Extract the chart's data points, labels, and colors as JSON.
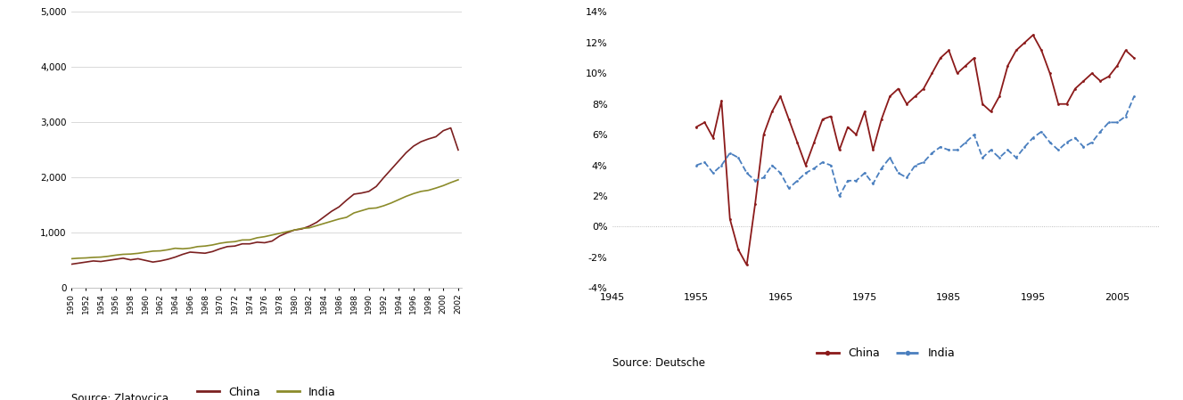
{
  "chart1": {
    "china_years": [
      1950,
      1951,
      1952,
      1953,
      1954,
      1955,
      1956,
      1957,
      1958,
      1959,
      1960,
      1961,
      1962,
      1963,
      1964,
      1965,
      1966,
      1967,
      1968,
      1969,
      1970,
      1971,
      1972,
      1973,
      1974,
      1975,
      1976,
      1977,
      1978,
      1979,
      1980,
      1981,
      1982,
      1983,
      1984,
      1985,
      1986,
      1987,
      1988,
      1989,
      1990,
      1991,
      1992,
      1993,
      1994,
      1995,
      1996,
      1997,
      1998,
      1999,
      2000,
      2001,
      2002
    ],
    "china_gdp": [
      430,
      450,
      470,
      490,
      480,
      500,
      520,
      540,
      510,
      530,
      500,
      470,
      490,
      520,
      560,
      610,
      650,
      640,
      630,
      660,
      710,
      750,
      760,
      800,
      800,
      830,
      820,
      850,
      940,
      1000,
      1050,
      1070,
      1120,
      1190,
      1290,
      1390,
      1470,
      1590,
      1700,
      1720,
      1750,
      1840,
      2000,
      2150,
      2300,
      2450,
      2570,
      2650,
      2700,
      2740,
      2850,
      2900,
      2500
    ],
    "india_years": [
      1950,
      1951,
      1952,
      1953,
      1954,
      1955,
      1956,
      1957,
      1958,
      1959,
      1960,
      1961,
      1962,
      1963,
      1964,
      1965,
      1966,
      1967,
      1968,
      1969,
      1970,
      1971,
      1972,
      1973,
      1974,
      1975,
      1976,
      1977,
      1978,
      1979,
      1980,
      1981,
      1982,
      1983,
      1984,
      1985,
      1986,
      1987,
      1988,
      1989,
      1990,
      1991,
      1992,
      1993,
      1994,
      1995,
      1996,
      1997,
      1998,
      1999,
      2000,
      2001,
      2002
    ],
    "india_gdp": [
      530,
      540,
      545,
      555,
      560,
      575,
      595,
      610,
      615,
      628,
      648,
      668,
      673,
      693,
      720,
      710,
      722,
      750,
      760,
      780,
      810,
      830,
      840,
      870,
      872,
      910,
      930,
      960,
      990,
      1020,
      1050,
      1080,
      1090,
      1130,
      1170,
      1210,
      1250,
      1280,
      1360,
      1400,
      1440,
      1450,
      1490,
      1540,
      1600,
      1660,
      1710,
      1750,
      1770,
      1810,
      1855,
      1910,
      1960
    ],
    "china_color": "#7b2020",
    "india_color": "#8b8b2a",
    "ylim": [
      0,
      5000
    ],
    "yticks": [
      0,
      1000,
      2000,
      3000,
      4000,
      5000
    ],
    "xticks": [
      1950,
      1952,
      1954,
      1956,
      1958,
      1960,
      1962,
      1964,
      1966,
      1968,
      1970,
      1972,
      1974,
      1976,
      1978,
      1980,
      1982,
      1984,
      1986,
      1988,
      1990,
      1992,
      1994,
      1996,
      1998,
      2000,
      2002
    ],
    "legend_china": "China",
    "legend_india": "India"
  },
  "chart2": {
    "china_years": [
      1955,
      1956,
      1957,
      1958,
      1959,
      1960,
      1961,
      1962,
      1963,
      1964,
      1965,
      1966,
      1967,
      1968,
      1969,
      1970,
      1971,
      1972,
      1973,
      1974,
      1975,
      1976,
      1977,
      1978,
      1979,
      1980,
      1981,
      1982,
      1983,
      1984,
      1985,
      1986,
      1987,
      1988,
      1989,
      1990,
      1991,
      1992,
      1993,
      1994,
      1995,
      1996,
      1997,
      1998,
      1999,
      2000,
      2001,
      2002,
      2003,
      2004,
      2005,
      2006,
      2007
    ],
    "china_gdp_growth": [
      6.5,
      6.8,
      5.8,
      8.2,
      0.5,
      -1.5,
      -2.5,
      1.5,
      6.0,
      7.5,
      8.5,
      7.0,
      5.5,
      4.0,
      5.5,
      7.0,
      7.2,
      5.0,
      6.5,
      6.0,
      7.5,
      5.0,
      7.0,
      8.5,
      9.0,
      8.0,
      8.5,
      9.0,
      10.0,
      11.0,
      11.5,
      10.0,
      10.5,
      11.0,
      8.0,
      7.5,
      8.5,
      10.5,
      11.5,
      12.0,
      12.5,
      11.5,
      10.0,
      8.0,
      8.0,
      9.0,
      9.5,
      10.0,
      9.5,
      9.8,
      10.5,
      11.5,
      11.0
    ],
    "india_years": [
      1955,
      1956,
      1957,
      1958,
      1959,
      1960,
      1961,
      1962,
      1963,
      1964,
      1965,
      1966,
      1967,
      1968,
      1969,
      1970,
      1971,
      1972,
      1973,
      1974,
      1975,
      1976,
      1977,
      1978,
      1979,
      1980,
      1981,
      1982,
      1983,
      1984,
      1985,
      1986,
      1987,
      1988,
      1989,
      1990,
      1991,
      1992,
      1993,
      1994,
      1995,
      1996,
      1997,
      1998,
      1999,
      2000,
      2001,
      2002,
      2003,
      2004,
      2005,
      2006,
      2007
    ],
    "india_gdp_growth": [
      4.0,
      4.2,
      3.5,
      4.0,
      4.8,
      4.5,
      3.5,
      3.0,
      3.2,
      4.0,
      3.5,
      2.5,
      3.0,
      3.5,
      3.8,
      4.2,
      4.0,
      2.0,
      3.0,
      3.0,
      3.5,
      2.8,
      3.8,
      4.5,
      3.5,
      3.2,
      4.0,
      4.2,
      4.8,
      5.2,
      5.0,
      5.0,
      5.5,
      6.0,
      4.5,
      5.0,
      4.5,
      5.0,
      4.5,
      5.2,
      5.8,
      6.2,
      5.5,
      5.0,
      5.5,
      5.8,
      5.2,
      5.5,
      6.2,
      6.8,
      6.8,
      7.2,
      8.5
    ],
    "china_color": "#8b1a1a",
    "india_color": "#4a7fbf",
    "ylim_min": -4,
    "ylim_max": 14,
    "ytick_vals": [
      -4,
      -2,
      0,
      2,
      4,
      6,
      8,
      10,
      12,
      14
    ],
    "ytick_labels": [
      "-4%",
      "-2%",
      "0%",
      "2%",
      "4%",
      "6%",
      "8%",
      "10%",
      "12%",
      "14%"
    ],
    "xticks": [
      1945,
      1955,
      1965,
      1975,
      1985,
      1995,
      2005
    ],
    "legend_china": "China",
    "legend_india": "India",
    "source": "Source: Deutsche"
  }
}
